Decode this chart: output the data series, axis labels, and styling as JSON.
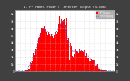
{
  "title": "4. PV Panel Power / Inverter Output (5.5kW)",
  "bg_color": "#404040",
  "plot_bg": "#ffffff",
  "bar_color": "#ff0000",
  "line_color": "#4444ff",
  "grid_color": "#cccccc",
  "title_color": "#ffffff",
  "tick_color": "#ffffff",
  "n_bars": 200,
  "seed": 7,
  "legend_bar_label": "PV Output",
  "legend_line_label": "Running Avg"
}
